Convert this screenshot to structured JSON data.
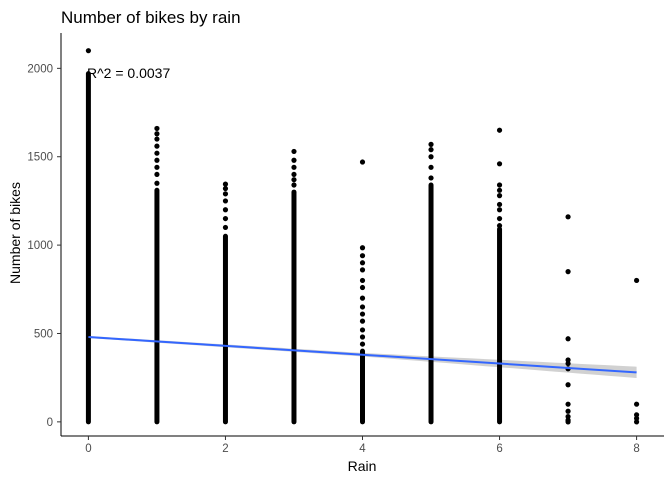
{
  "chart_data": {
    "type": "scatter",
    "title": "Number of bikes by rain",
    "xlabel": "Rain",
    "ylabel": "Number of bikes",
    "xlim": [
      -0.4,
      8.4
    ],
    "ylim": [
      -80,
      2200
    ],
    "xticks": [
      0,
      2,
      4,
      6,
      8
    ],
    "yticks": [
      0,
      500,
      1000,
      1500,
      2000
    ],
    "grid": false,
    "annotation": "R^2 = 0.0037",
    "columns": [
      {
        "x": 0,
        "min": 0,
        "max": 1970,
        "outliers": [
          2100
        ]
      },
      {
        "x": 1,
        "min": 0,
        "max": 1310,
        "outliers": [
          1350,
          1400,
          1440,
          1480,
          1520,
          1560,
          1600,
          1630,
          1660
        ]
      },
      {
        "x": 2,
        "min": 0,
        "max": 1050,
        "outliers": [
          1100,
          1150,
          1200,
          1250,
          1290,
          1320,
          1345
        ]
      },
      {
        "x": 3,
        "min": 0,
        "max": 1300,
        "outliers": [
          1340,
          1370,
          1400,
          1440,
          1480,
          1530
        ]
      },
      {
        "x": 4,
        "min": 0,
        "max": 400,
        "outliers": [
          440,
          480,
          520,
          570,
          610,
          650,
          700,
          760,
          800,
          860,
          900,
          940,
          985,
          1470
        ]
      },
      {
        "x": 5,
        "min": 0,
        "max": 1340,
        "outliers": [
          1380,
          1440,
          1500,
          1540,
          1570
        ]
      },
      {
        "x": 6,
        "min": 0,
        "max": 1090,
        "outliers": [
          1110,
          1150,
          1200,
          1230,
          1280,
          1310,
          1340,
          1460,
          1650
        ]
      },
      {
        "x": 7,
        "min": 0,
        "max": 0,
        "outliers": [
          10,
          30,
          60,
          100,
          210,
          300,
          330,
          350,
          470,
          850,
          1160
        ]
      },
      {
        "x": 8,
        "min": 0,
        "max": 0,
        "outliers": [
          20,
          40,
          100,
          800
        ]
      }
    ],
    "regression": {
      "intercept": 480,
      "slope": -25,
      "x_range": [
        0,
        8
      ],
      "ci_halfwidth_at_x": [
        [
          0,
          6
        ],
        [
          4,
          10
        ],
        [
          8,
          32
        ]
      ],
      "line_color": "#3366ff",
      "band_color": "#cccccc"
    },
    "point_color": "#000000"
  }
}
